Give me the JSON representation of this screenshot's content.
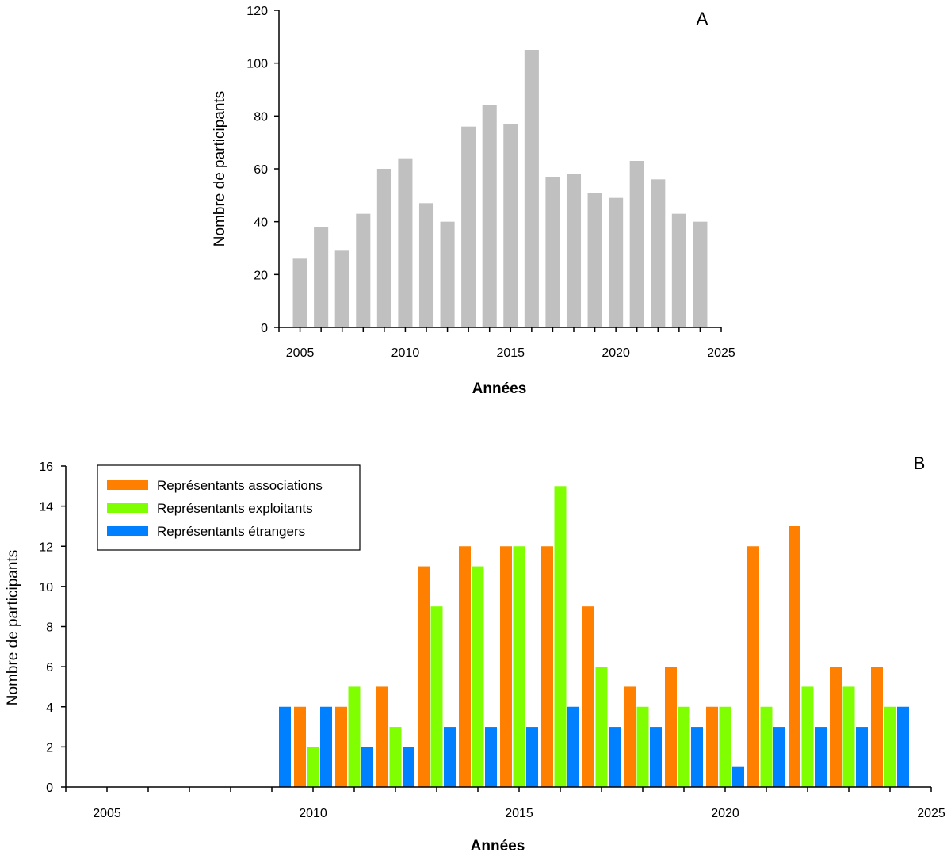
{
  "chart_data": [
    {
      "type": "bar",
      "panel_label": "A",
      "xlabel": "Années",
      "ylabel": "Nombre de participants",
      "xlim": [
        2004,
        2025
      ],
      "ylim": [
        0,
        120
      ],
      "x_ticks": [
        2005,
        2010,
        2015,
        2020,
        2025
      ],
      "y_ticks": [
        0,
        20,
        40,
        60,
        80,
        100,
        120
      ],
      "grid": false,
      "bar_color": "#c0c0c0",
      "x": [
        2005,
        2006,
        2007,
        2008,
        2009,
        2010,
        2011,
        2012,
        2013,
        2014,
        2015,
        2016,
        2017,
        2018,
        2019,
        2020,
        2021,
        2022,
        2023,
        2024
      ],
      "values": [
        26,
        38,
        29,
        43,
        60,
        64,
        47,
        40,
        76,
        84,
        77,
        105,
        57,
        58,
        51,
        49,
        63,
        56,
        43,
        40
      ]
    },
    {
      "type": "bar",
      "panel_label": "B",
      "xlabel": "Années",
      "ylabel": "Nombre de participants",
      "xlim": [
        2004,
        2025
      ],
      "ylim": [
        0,
        16
      ],
      "x_ticks": [
        2005,
        2010,
        2015,
        2020,
        2025
      ],
      "y_ticks": [
        0,
        2,
        4,
        6,
        8,
        10,
        12,
        14,
        16
      ],
      "grid": false,
      "legend_position": "top-left",
      "x": [
        2009,
        2010,
        2011,
        2012,
        2013,
        2014,
        2015,
        2016,
        2017,
        2018,
        2019,
        2020,
        2021,
        2022,
        2023,
        2024
      ],
      "series": [
        {
          "name": "Représentants associations",
          "color": "#ff8000",
          "values": [
            null,
            4,
            4,
            5,
            11,
            12,
            12,
            12,
            9,
            5,
            6,
            4,
            12,
            13,
            6,
            6
          ]
        },
        {
          "name": "Représentants exploitants",
          "color": "#80ff00",
          "values": [
            null,
            2,
            5,
            3,
            9,
            11,
            12,
            15,
            6,
            4,
            4,
            4,
            4,
            5,
            5,
            4
          ]
        },
        {
          "name": "Représentants étrangers",
          "color": "#0080ff",
          "values": [
            4,
            4,
            2,
            2,
            3,
            3,
            3,
            4,
            3,
            3,
            3,
            1,
            3,
            3,
            3,
            4
          ]
        }
      ]
    }
  ]
}
